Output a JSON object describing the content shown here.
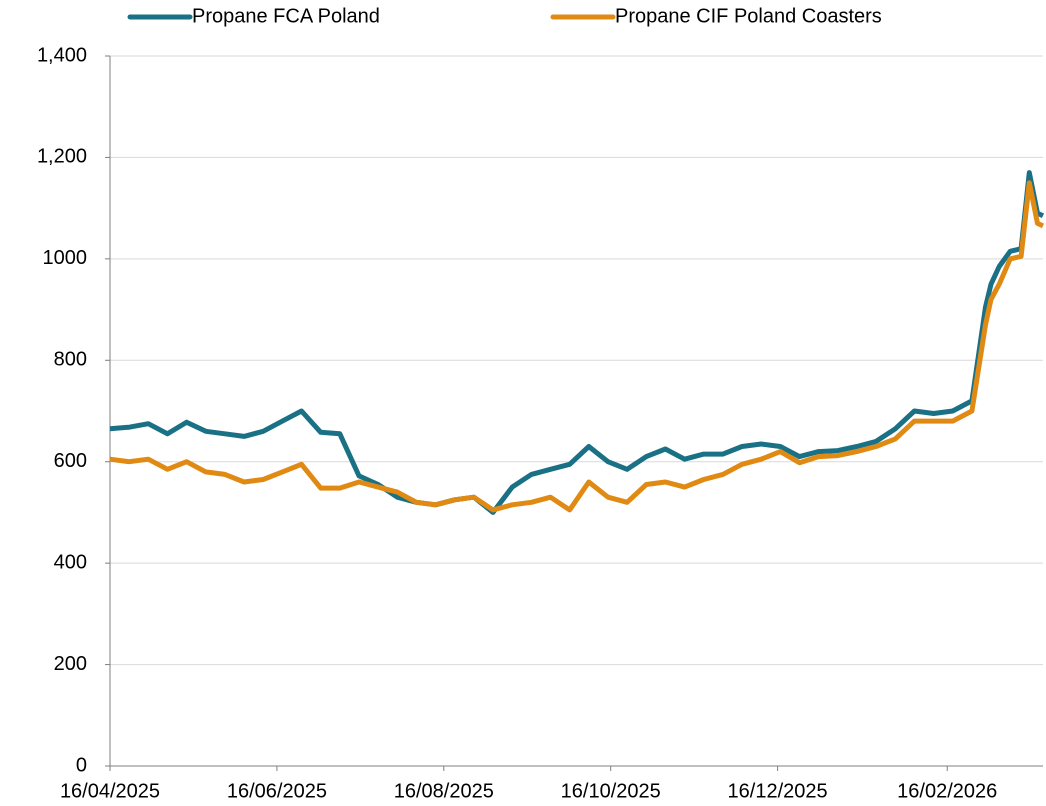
{
  "chart_data": {
    "type": "line",
    "x": [
      "16/04/2025",
      "23/04/2025",
      "30/04/2025",
      "07/05/2025",
      "14/05/2025",
      "21/05/2025",
      "28/05/2025",
      "04/06/2025",
      "11/06/2025",
      "18/06/2025",
      "25/06/2025",
      "02/07/2025",
      "09/07/2025",
      "16/07/2025",
      "23/07/2025",
      "30/07/2025",
      "06/08/2025",
      "13/08/2025",
      "20/08/2025",
      "27/08/2025",
      "03/09/2025",
      "10/09/2025",
      "17/09/2025",
      "24/09/2025",
      "01/10/2025",
      "08/10/2025",
      "15/10/2025",
      "22/10/2025",
      "29/10/2025",
      "05/11/2025",
      "12/11/2025",
      "19/11/2025",
      "26/11/2025",
      "03/12/2025",
      "10/12/2025",
      "17/12/2025",
      "24/12/2025",
      "31/12/2025",
      "07/01/2026",
      "14/01/2026",
      "21/01/2026",
      "28/01/2026",
      "04/02/2026",
      "11/02/2026",
      "18/02/2026",
      "25/02/2026",
      "02/03/2026",
      "04/03/2026",
      "07/03/2026",
      "11/03/2026",
      "15/03/2026",
      "18/03/2026",
      "21/03/2026",
      "23/03/2026"
    ],
    "series": [
      {
        "name": "Propane FCA Poland",
        "color": "#1a7185",
        "values": [
          665,
          668,
          675,
          655,
          678,
          660,
          655,
          650,
          660,
          680,
          700,
          658,
          655,
          572,
          555,
          530,
          520,
          515,
          525,
          530,
          500,
          550,
          575,
          585,
          595,
          630,
          600,
          585,
          610,
          625,
          605,
          615,
          615,
          630,
          635,
          630,
          610,
          620,
          622,
          630,
          640,
          665,
          700,
          695,
          700,
          720,
          905,
          950,
          985,
          1015,
          1020,
          1170,
          1090,
          1085
        ]
      },
      {
        "name": "Propane CIF Poland Coasters",
        "color": "#e08a14",
        "values": [
          605,
          600,
          605,
          585,
          600,
          580,
          575,
          560,
          565,
          580,
          595,
          548,
          548,
          560,
          550,
          540,
          520,
          515,
          525,
          530,
          505,
          515,
          520,
          530,
          505,
          560,
          530,
          520,
          555,
          560,
          550,
          565,
          575,
          595,
          605,
          620,
          598,
          610,
          612,
          620,
          630,
          645,
          680,
          680,
          680,
          700,
          870,
          920,
          950,
          1000,
          1005,
          1150,
          1070,
          1065
        ]
      }
    ],
    "xlim": [
      "16/04/2025",
      "23/03/2026"
    ],
    "xticks": [
      "16/04/2025",
      "16/06/2025",
      "16/08/2025",
      "16/10/2025",
      "16/12/2025",
      "16/02/2026"
    ],
    "ylim": [
      0,
      1400
    ],
    "yticks": [
      0,
      200,
      400,
      600,
      800,
      1000,
      {
        "value": 1200,
        "label": "1,200"
      },
      {
        "value": 1400,
        "label": "1,400"
      }
    ],
    "grid": true,
    "legend": "top"
  }
}
